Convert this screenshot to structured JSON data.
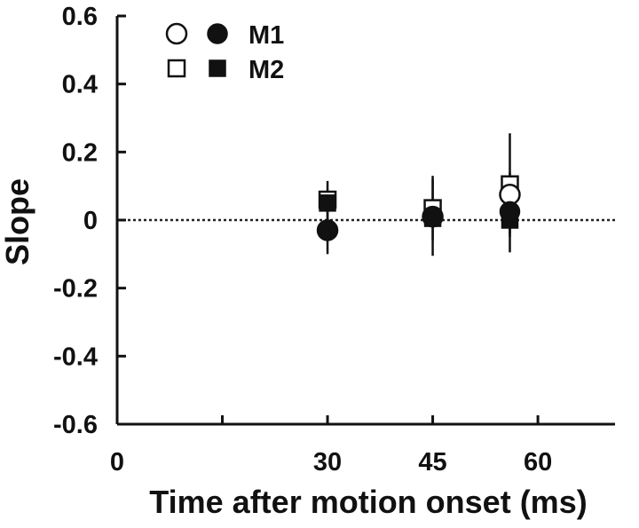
{
  "chart_data": {
    "type": "scatter",
    "title": "",
    "xlabel": "Time after motion onset (ms)",
    "ylabel": "Slope",
    "xlim": [
      0,
      71
    ],
    "ylim": [
      -0.6,
      0.6
    ],
    "x_ticks": [
      {
        "value": 0,
        "label": "0"
      },
      {
        "value": 15,
        "label": ""
      },
      {
        "value": 30,
        "label": "30"
      },
      {
        "value": 45,
        "label": "45"
      },
      {
        "value": 60,
        "label": "60"
      }
    ],
    "y_ticks": [
      {
        "value": 0.6,
        "label": "0.6"
      },
      {
        "value": 0.4,
        "label": "0.4"
      },
      {
        "value": 0.2,
        "label": "0.2"
      },
      {
        "value": 0,
        "label": "0"
      },
      {
        "value": -0.2,
        "label": "-0.2"
      },
      {
        "value": -0.4,
        "label": "-0.4"
      },
      {
        "value": -0.6,
        "label": "-0.6"
      }
    ],
    "reference_line": {
      "y": 0,
      "style": "dotted"
    },
    "grid": false,
    "legend": {
      "position": "top-left",
      "entries": [
        {
          "label": "M1",
          "markers": [
            "open-circle",
            "filled-circle"
          ]
        },
        {
          "label": "M2",
          "markers": [
            "open-square",
            "filled-square"
          ]
        }
      ]
    },
    "series": [
      {
        "name": "M1",
        "marker": "open-circle",
        "points": [
          {
            "x": 30,
            "y": -0.03,
            "err_low": -0.03,
            "err_high": -0.03
          },
          {
            "x": 45,
            "y": 0.01,
            "err_low": 0.01,
            "err_high": 0.01
          },
          {
            "x": 56,
            "y": 0.075,
            "err_low": 0.075,
            "err_high": 0.075
          }
        ]
      },
      {
        "name": "M1",
        "marker": "filled-circle",
        "points": [
          {
            "x": 30,
            "y": -0.03,
            "err_low": -0.1,
            "err_high": 0.04
          },
          {
            "x": 45,
            "y": 0.01,
            "err_low": -0.105,
            "err_high": 0.12
          },
          {
            "x": 56,
            "y": 0.025,
            "err_low": -0.095,
            "err_high": 0.14
          }
        ]
      },
      {
        "name": "M2",
        "marker": "open-square",
        "points": [
          {
            "x": 30,
            "y": 0.06,
            "err_low": 0.06,
            "err_high": 0.06
          },
          {
            "x": 45,
            "y": 0.035,
            "err_low": 0.035,
            "err_high": 0.035
          },
          {
            "x": 56,
            "y": 0.105,
            "err_low": -0.04,
            "err_high": 0.255
          }
        ]
      },
      {
        "name": "M2",
        "marker": "filled-square",
        "points": [
          {
            "x": 30,
            "y": 0.05,
            "err_low": -0.01,
            "err_high": 0.115
          },
          {
            "x": 45,
            "y": 0.005,
            "err_low": -0.06,
            "err_high": 0.13
          },
          {
            "x": 56,
            "y": 0.0,
            "err_low": -0.05,
            "err_high": 0.05
          }
        ]
      }
    ]
  }
}
